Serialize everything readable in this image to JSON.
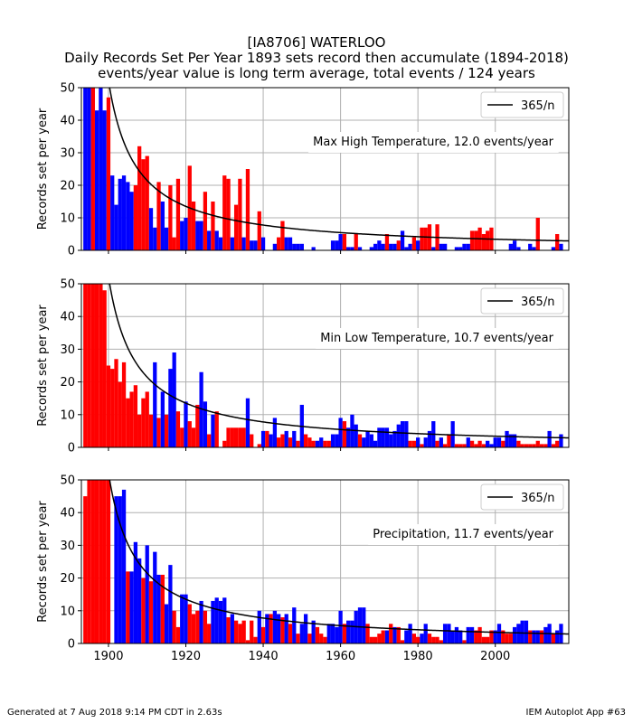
{
  "title_lines": [
    "[IA8706] WATERLOO",
    "Daily Records Set Per Year 1893 sets record then accumulate (1894-2018)",
    "events/year value is long term average, total events / 124 years"
  ],
  "footer": {
    "left": "Generated at 7 Aug 2018 9:14 PM CDT in 2.63s",
    "right": "IEM Autoplot App #63"
  },
  "colors": {
    "record_bar_high": "#ff0000",
    "record_bar_low": "#0000ff",
    "curve": "#000000",
    "grid": "#b0b0b0"
  },
  "chart_data": [
    {
      "type": "bar",
      "annotation": "Max High Temperature, 12.0 events/year",
      "ylabel": "Records set per year",
      "legend": {
        "label": "365/n",
        "placement": "top-right"
      },
      "xlim": [
        1893,
        2019
      ],
      "ylim": [
        0,
        50
      ],
      "xticks": [
        1900,
        1920,
        1940,
        1960,
        1980,
        2000
      ],
      "yticks": [
        0,
        10,
        20,
        30,
        40,
        50
      ],
      "grid": true,
      "start_year": 1894,
      "values": [
        50,
        50,
        50,
        43,
        50,
        43,
        47,
        23,
        14,
        22,
        23,
        21,
        18,
        20,
        32,
        28,
        29,
        13,
        7,
        21,
        15,
        7,
        20,
        4,
        22,
        9,
        10,
        26,
        15,
        9,
        9,
        18,
        6,
        15,
        6,
        4,
        23,
        22,
        4,
        14,
        22,
        4,
        25,
        3,
        3,
        12,
        4,
        0,
        0,
        2,
        4,
        9,
        4,
        4,
        2,
        2,
        2,
        0,
        0,
        1,
        0,
        0,
        0,
        0,
        3,
        3,
        5,
        5,
        1,
        1,
        5,
        1,
        0,
        0,
        1,
        2,
        3,
        2,
        5,
        2,
        2,
        3,
        6,
        1,
        2,
        4,
        3,
        7,
        7,
        8,
        1,
        8,
        2,
        2,
        0,
        0,
        1,
        1,
        2,
        2,
        6,
        6,
        7,
        5,
        6,
        7,
        0,
        0,
        0,
        0,
        2,
        3,
        1,
        0,
        0,
        2,
        1,
        10,
        0,
        0,
        0,
        1,
        5,
        2
      ],
      "colors": [
        "b",
        "b",
        "r",
        "b",
        "b",
        "b",
        "r",
        "b",
        "b",
        "b",
        "b",
        "b",
        "b",
        "r",
        "r",
        "r",
        "r",
        "b",
        "b",
        "r",
        "b",
        "b",
        "r",
        "r",
        "r",
        "b",
        "b",
        "r",
        "r",
        "b",
        "b",
        "r",
        "b",
        "r",
        "b",
        "b",
        "r",
        "r",
        "b",
        "r",
        "r",
        "b",
        "r",
        "b",
        "b",
        "r",
        "b",
        "b",
        "b",
        "b",
        "r",
        "r",
        "b",
        "b",
        "b",
        "b",
        "b",
        "b",
        "b",
        "b",
        "b",
        "b",
        "b",
        "b",
        "b",
        "b",
        "b",
        "r",
        "b",
        "b",
        "r",
        "b",
        "b",
        "b",
        "b",
        "b",
        "b",
        "b",
        "r",
        "b",
        "b",
        "r",
        "b",
        "b",
        "b",
        "r",
        "b",
        "r",
        "r",
        "r",
        "b",
        "r",
        "b",
        "b",
        "b",
        "b",
        "b",
        "b",
        "b",
        "b",
        "r",
        "r",
        "r",
        "r",
        "r",
        "r",
        "b",
        "b",
        "b",
        "b",
        "b",
        "b",
        "b",
        "b",
        "b",
        "b",
        "b",
        "r",
        "b",
        "b",
        "b",
        "b",
        "r",
        "b"
      ]
    },
    {
      "type": "bar",
      "annotation": "Min Low Temperature, 10.7 events/year",
      "ylabel": "Records set per year",
      "legend": {
        "label": "365/n",
        "placement": "top-right"
      },
      "xlim": [
        1893,
        2019
      ],
      "ylim": [
        0,
        50
      ],
      "xticks": [
        1900,
        1920,
        1940,
        1960,
        1980,
        2000
      ],
      "yticks": [
        0,
        10,
        20,
        30,
        40,
        50
      ],
      "grid": true,
      "start_year": 1894,
      "values": [
        50,
        50,
        50,
        50,
        50,
        48,
        25,
        24,
        27,
        20,
        26,
        15,
        17,
        19,
        10,
        15,
        17,
        10,
        26,
        9,
        17,
        10,
        24,
        29,
        11,
        6,
        14,
        8,
        6,
        13,
        23,
        14,
        4,
        10,
        11,
        0,
        2,
        6,
        6,
        6,
        6,
        6,
        15,
        4,
        0,
        1,
        5,
        5,
        4,
        9,
        3,
        4,
        5,
        3,
        5,
        2,
        13,
        4,
        3,
        2,
        2,
        3,
        2,
        2,
        4,
        4,
        9,
        8,
        6,
        10,
        7,
        4,
        3,
        5,
        4,
        2,
        6,
        6,
        6,
        4,
        5,
        7,
        8,
        8,
        2,
        2,
        3,
        1,
        3,
        5,
        8,
        2,
        3,
        1,
        4,
        8,
        1,
        1,
        1,
        3,
        2,
        1,
        2,
        1,
        2,
        1,
        3,
        3,
        2,
        5,
        4,
        4,
        2,
        1,
        1,
        1,
        1,
        2,
        1,
        1,
        5,
        1,
        2,
        4
      ],
      "colors": [
        "r",
        "r",
        "r",
        "r",
        "r",
        "r",
        "r",
        "r",
        "r",
        "r",
        "r",
        "r",
        "r",
        "r",
        "r",
        "r",
        "r",
        "r",
        "b",
        "r",
        "b",
        "r",
        "b",
        "b",
        "r",
        "r",
        "b",
        "r",
        "r",
        "r",
        "b",
        "b",
        "r",
        "b",
        "r",
        "r",
        "r",
        "r",
        "r",
        "r",
        "r",
        "r",
        "b",
        "r",
        "b",
        "r",
        "b",
        "r",
        "b",
        "b",
        "r",
        "r",
        "b",
        "r",
        "b",
        "r",
        "b",
        "r",
        "r",
        "r",
        "b",
        "b",
        "r",
        "r",
        "b",
        "b",
        "b",
        "r",
        "b",
        "b",
        "b",
        "r",
        "b",
        "b",
        "b",
        "b",
        "b",
        "b",
        "b",
        "b",
        "b",
        "b",
        "b",
        "b",
        "r",
        "r",
        "b",
        "r",
        "b",
        "b",
        "b",
        "r",
        "b",
        "r",
        "r",
        "b",
        "r",
        "r",
        "r",
        "b",
        "r",
        "r",
        "r",
        "r",
        "b",
        "b",
        "b",
        "b",
        "r",
        "b",
        "b",
        "b",
        "r",
        "r",
        "r",
        "r",
        "r",
        "r",
        "r",
        "r",
        "b",
        "r",
        "r",
        "b"
      ]
    },
    {
      "type": "bar",
      "annotation": "Precipitation, 11.7 events/year",
      "ylabel": "Records set per year",
      "legend": {
        "label": "365/n",
        "placement": "top-right"
      },
      "xlim": [
        1893,
        2019
      ],
      "ylim": [
        0,
        50
      ],
      "xticks": [
        1900,
        1920,
        1940,
        1960,
        1980,
        2000
      ],
      "yticks": [
        0,
        10,
        20,
        30,
        40,
        50
      ],
      "grid": true,
      "start_year": 1894,
      "values": [
        45,
        50,
        50,
        50,
        50,
        50,
        50,
        0,
        45,
        45,
        47,
        22,
        22,
        31,
        26,
        20,
        30,
        19,
        28,
        21,
        21,
        12,
        24,
        10,
        5,
        15,
        15,
        12,
        9,
        10,
        13,
        10,
        6,
        13,
        14,
        13,
        14,
        8,
        9,
        7,
        6,
        7,
        1,
        7,
        2,
        10,
        5,
        9,
        9,
        10,
        9,
        8,
        9,
        6,
        11,
        3,
        6,
        9,
        3,
        7,
        5,
        3,
        2,
        6,
        6,
        5,
        10,
        6,
        7,
        7,
        10,
        11,
        11,
        6,
        2,
        2,
        3,
        4,
        4,
        6,
        5,
        5,
        1,
        4,
        6,
        3,
        2,
        3,
        6,
        3,
        2,
        2,
        1,
        6,
        6,
        4,
        5,
        4,
        1,
        5,
        5,
        4,
        5,
        2,
        2,
        4,
        4,
        6,
        4,
        3,
        3,
        5,
        6,
        7,
        7,
        4,
        4,
        4,
        4,
        5,
        6,
        3,
        4,
        6
      ],
      "colors": [
        "r",
        "r",
        "r",
        "r",
        "r",
        "r",
        "r",
        "b",
        "b",
        "b",
        "b",
        "r",
        "b",
        "b",
        "b",
        "r",
        "b",
        "r",
        "b",
        "b",
        "r",
        "b",
        "b",
        "r",
        "r",
        "b",
        "b",
        "r",
        "r",
        "r",
        "b",
        "r",
        "r",
        "b",
        "b",
        "b",
        "b",
        "r",
        "b",
        "r",
        "r",
        "r",
        "r",
        "r",
        "r",
        "b",
        "r",
        "b",
        "r",
        "b",
        "b",
        "r",
        "b",
        "r",
        "b",
        "r",
        "b",
        "b",
        "r",
        "b",
        "r",
        "r",
        "r",
        "b",
        "b",
        "b",
        "b",
        "r",
        "b",
        "b",
        "b",
        "b",
        "b",
        "r",
        "r",
        "r",
        "r",
        "r",
        "b",
        "r",
        "b",
        "r",
        "r",
        "b",
        "b",
        "r",
        "r",
        "b",
        "b",
        "r",
        "r",
        "r",
        "r",
        "b",
        "b",
        "b",
        "b",
        "b",
        "r",
        "b",
        "b",
        "r",
        "r",
        "r",
        "r",
        "r",
        "b",
        "b",
        "r",
        "r",
        "r",
        "b",
        "b",
        "b",
        "b",
        "r",
        "b",
        "b",
        "r",
        "b",
        "b",
        "r",
        "b",
        "b"
      ]
    }
  ]
}
